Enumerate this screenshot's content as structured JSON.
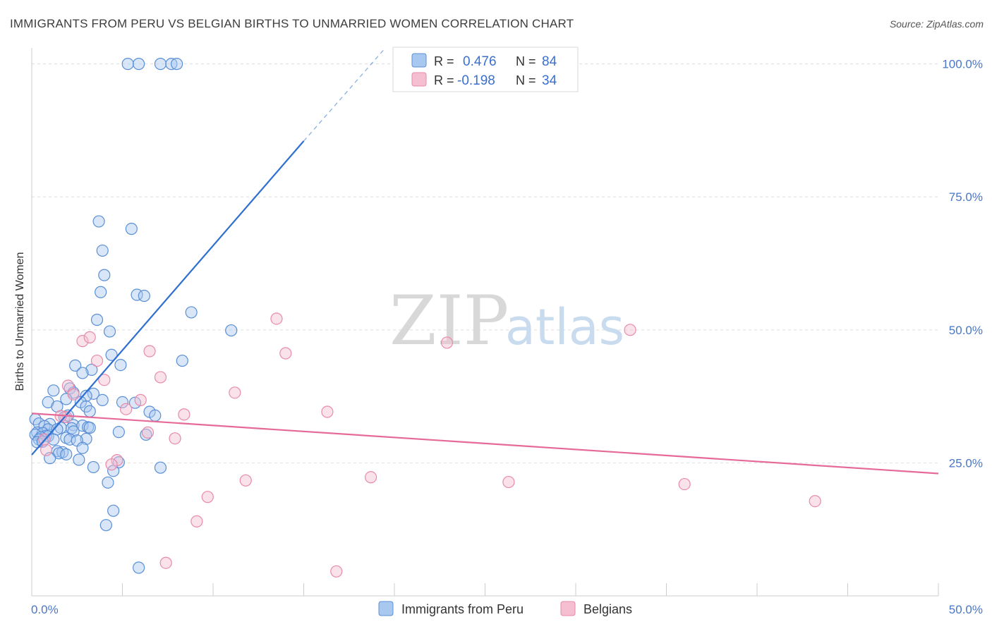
{
  "title": "IMMIGRANTS FROM PERU VS BELGIAN BIRTHS TO UNMARRIED WOMEN CORRELATION CHART",
  "source": "Source: ZipAtlas.com",
  "watermark": {
    "zip": "ZIP",
    "atlas": "atlas"
  },
  "colors": {
    "blue_fill": "#a9c8ef",
    "blue_stroke": "#5a8fd6",
    "blue_line": "#2f6fd0",
    "pink_fill": "#f5bfd1",
    "pink_stroke": "#e88aab",
    "pink_line": "#e56a98",
    "tick_color": "#4a76c8",
    "grid": "#dddddd"
  },
  "legend": {
    "r_label": "R =",
    "n_label": "N =",
    "series1": {
      "r": "0.476",
      "n": "84"
    },
    "series2": {
      "r": "-0.198",
      "n": "34"
    }
  },
  "chart_data": {
    "type": "scatter",
    "title": "IMMIGRANTS FROM PERU VS BELGIAN BIRTHS TO UNMARRIED WOMEN CORRELATION CHART",
    "xlabel": "",
    "ylabel": "Births to Unmarried Women",
    "xlim": [
      0,
      50
    ],
    "ylim": [
      0,
      103
    ],
    "x_tick_labels": [
      "0.0%",
      "50.0%"
    ],
    "y_ticks": [
      25,
      50,
      75,
      100
    ],
    "y_tick_labels": [
      "25.0%",
      "50.0%",
      "75.0%",
      "100.0%"
    ],
    "grid": true,
    "series": [
      {
        "name": "Immigrants from Peru",
        "color": "blue",
        "trend": {
          "x0": 0.0,
          "y0": 26.5,
          "x1": 15.0,
          "y1": 85.5,
          "dash_x1": 19.5,
          "dash_y1": 103
        },
        "points": [
          [
            5.3,
            100
          ],
          [
            5.9,
            100
          ],
          [
            7.1,
            100
          ],
          [
            7.7,
            100
          ],
          [
            8.0,
            100
          ],
          [
            3.7,
            70.4
          ],
          [
            5.5,
            69.0
          ],
          [
            3.9,
            64.9
          ],
          [
            4.0,
            60.3
          ],
          [
            3.8,
            57.1
          ],
          [
            5.8,
            56.6
          ],
          [
            6.2,
            56.4
          ],
          [
            8.8,
            53.3
          ],
          [
            3.6,
            51.9
          ],
          [
            4.3,
            49.7
          ],
          [
            11.0,
            49.9
          ],
          [
            4.4,
            45.3
          ],
          [
            8.3,
            44.2
          ],
          [
            4.9,
            43.4
          ],
          [
            2.4,
            43.3
          ],
          [
            3.3,
            42.5
          ],
          [
            2.8,
            41.9
          ],
          [
            2.1,
            39.0
          ],
          [
            2.3,
            38.2
          ],
          [
            3.4,
            38.0
          ],
          [
            1.2,
            38.6
          ],
          [
            3.0,
            37.6
          ],
          [
            1.9,
            37.0
          ],
          [
            0.9,
            36.4
          ],
          [
            3.9,
            36.8
          ],
          [
            2.7,
            36.4
          ],
          [
            5.0,
            36.4
          ],
          [
            5.7,
            36.3
          ],
          [
            3.0,
            35.6
          ],
          [
            1.4,
            35.6
          ],
          [
            3.2,
            34.7
          ],
          [
            6.5,
            34.6
          ],
          [
            6.8,
            33.9
          ],
          [
            1.8,
            33.6
          ],
          [
            0.2,
            33.2
          ],
          [
            0.4,
            32.4
          ],
          [
            1.0,
            32.3
          ],
          [
            2.3,
            32.1
          ],
          [
            0.7,
            31.9
          ],
          [
            2.8,
            32.0
          ],
          [
            1.6,
            31.6
          ],
          [
            3.1,
            31.7
          ],
          [
            3.2,
            31.6
          ],
          [
            2.2,
            31.5
          ],
          [
            0.9,
            31.3
          ],
          [
            1.4,
            31.3
          ],
          [
            0.3,
            30.7
          ],
          [
            0.6,
            30.6
          ],
          [
            2.3,
            30.9
          ],
          [
            4.8,
            30.8
          ],
          [
            0.2,
            30.3
          ],
          [
            0.8,
            30.1
          ],
          [
            0.9,
            30.0
          ],
          [
            0.5,
            29.8
          ],
          [
            6.3,
            30.3
          ],
          [
            1.9,
            29.7
          ],
          [
            0.4,
            29.4
          ],
          [
            1.2,
            29.4
          ],
          [
            2.1,
            29.4
          ],
          [
            3.0,
            29.5
          ],
          [
            0.3,
            28.9
          ],
          [
            0.6,
            29.0
          ],
          [
            2.5,
            29.2
          ],
          [
            2.8,
            27.8
          ],
          [
            1.4,
            27.2
          ],
          [
            1.7,
            27.0
          ],
          [
            1.5,
            26.8
          ],
          [
            1.9,
            26.6
          ],
          [
            1.0,
            25.9
          ],
          [
            2.6,
            25.6
          ],
          [
            4.8,
            25.1
          ],
          [
            3.4,
            24.2
          ],
          [
            7.1,
            24.1
          ],
          [
            4.5,
            23.5
          ],
          [
            4.2,
            21.3
          ],
          [
            4.5,
            16.0
          ],
          [
            4.1,
            13.3
          ],
          [
            5.9,
            5.3
          ],
          [
            2.0,
            33.9
          ]
        ]
      },
      {
        "name": "Belgians",
        "color": "pink",
        "trend": {
          "x0": 0.0,
          "y0": 34.3,
          "x1": 50.0,
          "y1": 23.0
        },
        "points": [
          [
            13.5,
            52.1
          ],
          [
            33.0,
            50.0
          ],
          [
            2.8,
            47.9
          ],
          [
            3.2,
            48.6
          ],
          [
            6.5,
            46.0
          ],
          [
            14.0,
            45.6
          ],
          [
            22.9,
            47.6
          ],
          [
            3.6,
            44.2
          ],
          [
            4.0,
            40.6
          ],
          [
            7.1,
            41.1
          ],
          [
            2.0,
            39.5
          ],
          [
            11.2,
            38.2
          ],
          [
            2.3,
            37.9
          ],
          [
            6.0,
            36.8
          ],
          [
            5.2,
            35.1
          ],
          [
            16.3,
            34.6
          ],
          [
            8.4,
            34.1
          ],
          [
            1.9,
            33.6
          ],
          [
            1.6,
            33.8
          ],
          [
            6.4,
            30.7
          ],
          [
            7.9,
            29.6
          ],
          [
            0.7,
            29.4
          ],
          [
            0.8,
            27.4
          ],
          [
            4.7,
            25.5
          ],
          [
            4.4,
            24.7
          ],
          [
            11.8,
            21.7
          ],
          [
            18.7,
            22.3
          ],
          [
            26.3,
            21.4
          ],
          [
            36.0,
            21.0
          ],
          [
            43.2,
            17.8
          ],
          [
            9.7,
            18.6
          ],
          [
            9.1,
            14.0
          ],
          [
            7.4,
            6.2
          ],
          [
            16.8,
            4.6
          ]
        ]
      }
    ]
  }
}
